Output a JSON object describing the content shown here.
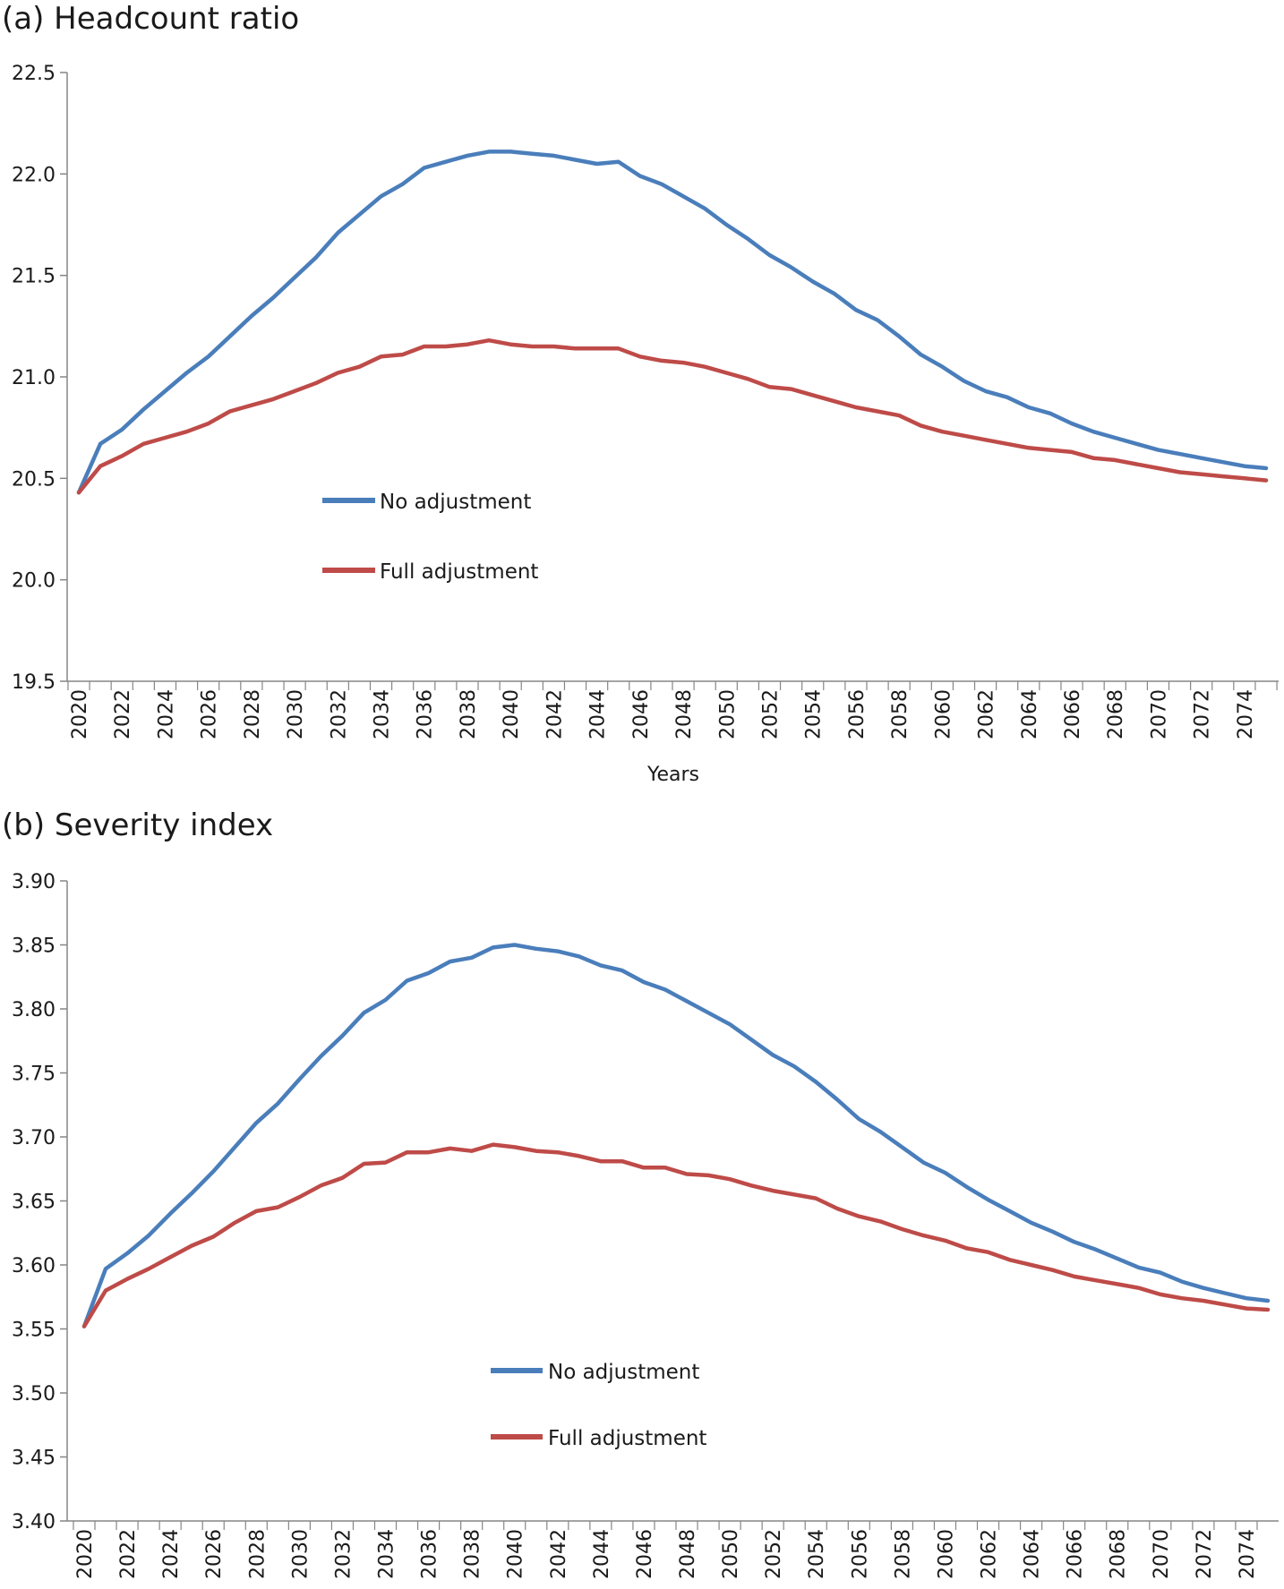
{
  "chart_data": [
    {
      "type": "line",
      "title": "(a) Headcount ratio",
      "xlabel": "Years",
      "ylabel": "",
      "ylim": [
        19.5,
        22.5
      ],
      "yticks": [
        "19.5",
        "20.0",
        "20.5",
        "21.0",
        "21.5",
        "22.0",
        "22.5"
      ],
      "x_tick_labels": [
        "2020",
        "2022",
        "2024",
        "2026",
        "2028",
        "2030",
        "2032",
        "2034",
        "2036",
        "2038",
        "2040",
        "2042",
        "2044",
        "2046",
        "2048",
        "2050",
        "2052",
        "2054",
        "2056",
        "2058",
        "2060",
        "2062",
        "2064",
        "2066",
        "2068",
        "2070",
        "2072",
        "2074"
      ],
      "x": [
        2020,
        2021,
        2022,
        2023,
        2024,
        2025,
        2026,
        2027,
        2028,
        2029,
        2030,
        2031,
        2032,
        2033,
        2034,
        2035,
        2036,
        2037,
        2038,
        2039,
        2040,
        2041,
        2042,
        2043,
        2044,
        2045,
        2046,
        2047,
        2048,
        2049,
        2050,
        2051,
        2052,
        2053,
        2054,
        2055,
        2056,
        2057,
        2058,
        2059,
        2060,
        2061,
        2062,
        2063,
        2064,
        2065,
        2066,
        2067,
        2068,
        2069,
        2070,
        2071,
        2072,
        2073,
        2074,
        2075
      ],
      "grid": false,
      "legend_position": "center-left",
      "series": [
        {
          "name": "No adjustment",
          "color": "#4a7ebb",
          "values": [
            20.43,
            20.67,
            20.74,
            20.84,
            20.93,
            21.02,
            21.1,
            21.2,
            21.3,
            21.39,
            21.49,
            21.59,
            21.71,
            21.8,
            21.89,
            21.95,
            22.03,
            22.06,
            22.09,
            22.11,
            22.11,
            22.1,
            22.09,
            22.07,
            22.05,
            22.06,
            21.99,
            21.95,
            21.89,
            21.83,
            21.75,
            21.68,
            21.6,
            21.54,
            21.47,
            21.41,
            21.33,
            21.28,
            21.2,
            21.11,
            21.05,
            20.98,
            20.93,
            20.9,
            20.85,
            20.82,
            20.77,
            20.73,
            20.7,
            20.67,
            20.64,
            20.62,
            20.6,
            20.58,
            20.56,
            20.55
          ]
        },
        {
          "name": "Full adjustment",
          "color": "#be4b48",
          "values": [
            20.43,
            20.56,
            20.61,
            20.67,
            20.7,
            20.73,
            20.77,
            20.83,
            20.86,
            20.89,
            20.93,
            20.97,
            21.02,
            21.05,
            21.1,
            21.11,
            21.15,
            21.15,
            21.16,
            21.18,
            21.16,
            21.15,
            21.15,
            21.14,
            21.14,
            21.14,
            21.1,
            21.08,
            21.07,
            21.05,
            21.02,
            20.99,
            20.95,
            20.94,
            20.91,
            20.88,
            20.85,
            20.83,
            20.81,
            20.76,
            20.73,
            20.71,
            20.69,
            20.67,
            20.65,
            20.64,
            20.63,
            20.6,
            20.59,
            20.57,
            20.55,
            20.53,
            20.52,
            20.51,
            20.5,
            20.49
          ]
        }
      ]
    },
    {
      "type": "line",
      "title": "(b) Severity index",
      "xlabel": "",
      "ylabel": "",
      "ylim": [
        3.4,
        3.9
      ],
      "yticks": [
        "3.40",
        "3.45",
        "3.50",
        "3.55",
        "3.60",
        "3.65",
        "3.70",
        "3.75",
        "3.80",
        "3.85",
        "3.90"
      ],
      "x_tick_labels": [
        "2020",
        "2022",
        "2024",
        "2026",
        "2028",
        "2030",
        "2032",
        "2034",
        "2036",
        "2038",
        "2040",
        "2042",
        "2044",
        "2046",
        "2048",
        "2050",
        "2052",
        "2054",
        "2056",
        "2058",
        "2060",
        "2062",
        "2064",
        "2066",
        "2068",
        "2070",
        "2072",
        "2074"
      ],
      "x": [
        2020,
        2021,
        2022,
        2023,
        2024,
        2025,
        2026,
        2027,
        2028,
        2029,
        2030,
        2031,
        2032,
        2033,
        2034,
        2035,
        2036,
        2037,
        2038,
        2039,
        2040,
        2041,
        2042,
        2043,
        2044,
        2045,
        2046,
        2047,
        2048,
        2049,
        2050,
        2051,
        2052,
        2053,
        2054,
        2055,
        2056,
        2057,
        2058,
        2059,
        2060,
        2061,
        2062,
        2063,
        2064,
        2065,
        2066,
        2067,
        2068,
        2069,
        2070,
        2071,
        2072,
        2073,
        2074,
        2075
      ],
      "grid": false,
      "legend_position": "bottom-center",
      "series": [
        {
          "name": "No adjustment",
          "color": "#4a7ebb",
          "values": [
            3.552,
            3.597,
            3.609,
            3.623,
            3.64,
            3.656,
            3.673,
            3.692,
            3.711,
            3.726,
            3.745,
            3.763,
            3.779,
            3.797,
            3.807,
            3.822,
            3.828,
            3.837,
            3.84,
            3.848,
            3.85,
            3.847,
            3.845,
            3.841,
            3.834,
            3.83,
            3.821,
            3.815,
            3.806,
            3.797,
            3.788,
            3.776,
            3.764,
            3.755,
            3.743,
            3.729,
            3.714,
            3.704,
            3.692,
            3.68,
            3.672,
            3.661,
            3.651,
            3.642,
            3.633,
            3.626,
            3.618,
            3.612,
            3.605,
            3.598,
            3.594,
            3.587,
            3.582,
            3.578,
            3.574,
            3.572
          ]
        },
        {
          "name": "Full adjustment",
          "color": "#be4b48",
          "values": [
            3.552,
            3.58,
            3.589,
            3.597,
            3.606,
            3.615,
            3.622,
            3.633,
            3.642,
            3.645,
            3.653,
            3.662,
            3.668,
            3.679,
            3.68,
            3.688,
            3.688,
            3.691,
            3.689,
            3.694,
            3.692,
            3.689,
            3.688,
            3.685,
            3.681,
            3.681,
            3.676,
            3.676,
            3.671,
            3.67,
            3.667,
            3.662,
            3.658,
            3.655,
            3.652,
            3.644,
            3.638,
            3.634,
            3.628,
            3.623,
            3.619,
            3.613,
            3.61,
            3.604,
            3.6,
            3.596,
            3.591,
            3.588,
            3.585,
            3.582,
            3.577,
            3.574,
            3.572,
            3.569,
            3.566,
            3.565
          ]
        }
      ]
    }
  ]
}
